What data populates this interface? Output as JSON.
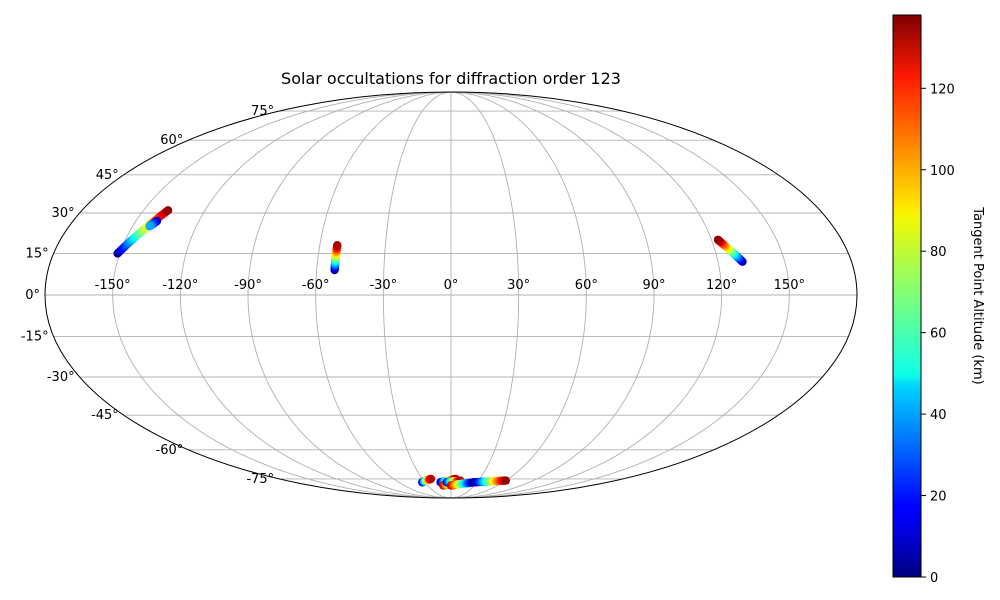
{
  "chart_data": {
    "type": "scatter",
    "title": "Solar occultations for diffraction order 123",
    "projection": "mollweide",
    "grid": true,
    "longitude_ticks": [
      -150,
      -120,
      -90,
      -60,
      -30,
      0,
      30,
      60,
      90,
      120,
      150
    ],
    "longitude_tick_labels": [
      "-150°",
      "-120°",
      "-90°",
      "-60°",
      "-30°",
      "0°",
      "30°",
      "60°",
      "90°",
      "120°",
      "150°"
    ],
    "latitude_ticks": [
      75,
      60,
      45,
      30,
      15,
      0,
      -15,
      -30,
      -45,
      -60,
      -75
    ],
    "latitude_tick_labels": [
      "75°",
      "60°",
      "45°",
      "30°",
      "15°",
      "0°",
      "-15°",
      "-30°",
      "-45°",
      "-60°",
      "-75°"
    ],
    "colorbar": {
      "label": "Tangent Point Altitude (km)",
      "colormap": "jet",
      "range": [
        0,
        138
      ],
      "ticks": [
        0,
        20,
        40,
        60,
        80,
        100,
        120
      ],
      "tick_labels": [
        "0",
        "20",
        "40",
        "60",
        "80",
        "100",
        "120"
      ],
      "placement": "right"
    },
    "tracks": [
      {
        "lon_start": -151,
        "lat_start": 15,
        "lon_end": -138,
        "lat_end": 31,
        "alt_start": 2,
        "alt_end": 135
      },
      {
        "lon_start": -140,
        "lat_start": 27,
        "lon_end": -142,
        "lat_end": 25,
        "alt_start": 5,
        "alt_end": 40
      },
      {
        "lon_start": -52,
        "lat_start": 9,
        "lon_end": -52,
        "lat_end": 18,
        "alt_start": 2,
        "alt_end": 132
      },
      {
        "lon_start": 131,
        "lat_start": 12,
        "lon_end": 123,
        "lat_end": 20,
        "alt_start": 2,
        "alt_end": 135
      },
      {
        "lon_start": -33,
        "lat_start": -77,
        "lon_end": -21,
        "lat_end": -75,
        "alt_start": 2,
        "alt_end": 130
      },
      {
        "lon_start": -12,
        "lat_start": -77,
        "lon_end": 5,
        "lat_end": -75,
        "alt_start": 2,
        "alt_end": 135
      },
      {
        "lon_start": -10,
        "lat_start": -79,
        "lon_end": 12,
        "lat_end": -77,
        "alt_start": 130,
        "alt_end": 0
      },
      {
        "lon_start": -5,
        "lat_start": -77,
        "lon_end": 10,
        "lat_end": -76,
        "alt_start": 10,
        "alt_end": 130
      },
      {
        "lon_start": 0,
        "lat_start": -79,
        "lon_end": 27,
        "lat_end": -77,
        "alt_start": 130,
        "alt_end": 0
      },
      {
        "lon_start": 27,
        "lat_start": -77,
        "lon_end": 60,
        "lat_end": -76,
        "alt_start": 0,
        "alt_end": 135
      }
    ]
  }
}
